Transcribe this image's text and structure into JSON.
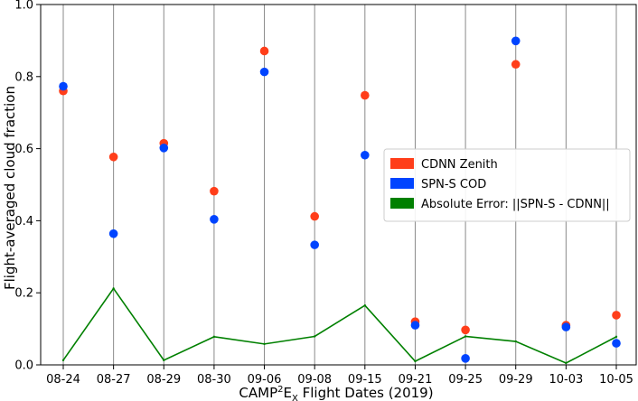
{
  "chart_data": {
    "type": "scatter",
    "categories": [
      "08-24",
      "08-27",
      "08-29",
      "08-30",
      "09-06",
      "09-08",
      "09-15",
      "09-21",
      "09-25",
      "09-29",
      "10-03",
      "10-05"
    ],
    "series": [
      {
        "name": "CDNN Zenith",
        "kind": "scatter",
        "color": "#ff3e1a",
        "values": [
          0.76,
          0.577,
          0.615,
          0.482,
          0.871,
          0.412,
          0.748,
          0.12,
          0.097,
          0.834,
          0.11,
          0.138
        ]
      },
      {
        "name": "SPN-S COD",
        "kind": "scatter",
        "color": "#0044ff",
        "values": [
          0.773,
          0.364,
          0.602,
          0.404,
          0.813,
          0.333,
          0.582,
          0.11,
          0.018,
          0.899,
          0.105,
          0.06
        ]
      },
      {
        "name": "Absolute Error: ||SPN-S - CDNN||",
        "kind": "line",
        "color": "#008000",
        "values": [
          0.013,
          0.212,
          0.013,
          0.078,
          0.058,
          0.079,
          0.165,
          0.01,
          0.079,
          0.065,
          0.005,
          0.078
        ]
      }
    ],
    "title": "",
    "xlabel": {
      "pre": "CAMP",
      "sup": "2",
      "mid": "E",
      "sub": "X",
      "post": " Flight Dates (2019)"
    },
    "ylabel": "Flight-averaged cloud fraction",
    "ylim": [
      0.0,
      1.0
    ],
    "yticks": [
      "0.0",
      "0.2",
      "0.4",
      "0.6",
      "0.8",
      "1.0"
    ],
    "grid": "vertical",
    "legend_position": "center-right"
  }
}
